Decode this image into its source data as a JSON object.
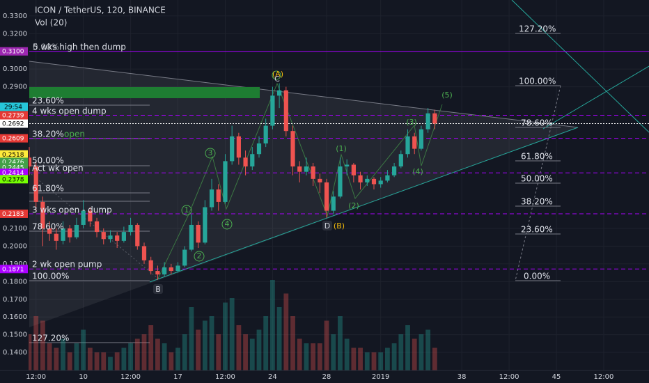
{
  "chart_data": {
    "type": "candlestick",
    "title": "ICON / TetherUS, 120, BINANCE",
    "subtitle": "Vol (20)",
    "xlim": [
      6,
      51.85
    ],
    "ylim": [
      0.1298,
      0.339
    ],
    "xticks": [
      {
        "value": 6.5,
        "label": "12:00"
      },
      10,
      {
        "value": 13.5,
        "label": "12:00"
      },
      17,
      {
        "value": 20.5,
        "label": "12:00"
      },
      24,
      28,
      {
        "value": 32,
        "label": "2019"
      },
      38,
      {
        "value": 41.5,
        "label": "12:00"
      },
      45,
      {
        "value": 48.5,
        "label": "12:00"
      }
    ],
    "yticks": [
      {
        "value": 0.33,
        "label": "0.3300"
      },
      {
        "value": 0.32,
        "label": "0.3200"
      },
      {
        "value": 0.3,
        "label": "0.3000"
      },
      {
        "value": 0.29,
        "label": "0.2900"
      },
      {
        "value": 0.21,
        "label": "0.2100"
      },
      {
        "value": 0.2,
        "label": "0.2000"
      },
      {
        "value": 0.19,
        "label": "0.1900"
      },
      {
        "value": 0.18,
        "label": "0.1800"
      },
      {
        "value": 0.17,
        "label": "0.1700"
      },
      {
        "value": 0.16,
        "label": "0.1600"
      },
      {
        "value": 0.15,
        "label": "0.1500"
      },
      {
        "value": 0.14,
        "label": "0.1400"
      }
    ],
    "grid": true,
    "up_color": "#26a69a",
    "down_color": "#ef5350",
    "timer": {
      "label": "29:54",
      "value": 0.2787,
      "color": "#26c6da"
    },
    "price_labels": [
      {
        "value": 0.31,
        "label": "0.3100",
        "color": "#9c27b0",
        "text_color": "#ffffff",
        "line_style": "solid"
      },
      {
        "value": 0.2739,
        "label": "0.2739",
        "color": "#e53935",
        "text_color": "#ffffff",
        "line_style": "dashed"
      },
      {
        "value": 0.2692,
        "label": "0.2692",
        "color": "#ffffff",
        "text_color": "#000000",
        "line_style": "dotted"
      },
      {
        "value": 0.2609,
        "label": "0.2609",
        "color": "#e53935",
        "text_color": "#ffffff",
        "line_style": "dashed"
      },
      {
        "value": 0.2518,
        "label": "0.2518",
        "color": "#ffeb3b",
        "text_color": "#000000"
      },
      {
        "value": 0.2476,
        "label": "0.2476",
        "color": "#43a047",
        "text_color": "#ffffff"
      },
      {
        "value": 0.2445,
        "label": "0.2445",
        "color": "#43a047",
        "text_color": "#ffffff"
      },
      {
        "value": 0.2414,
        "label": "0.2414",
        "color": "#aa00ff",
        "text_color": "#ffffff",
        "line_style": "dashed"
      },
      {
        "value": 0.2378,
        "label": "0.2378",
        "color": "#76ff03",
        "text_color": "#000000"
      },
      {
        "value": 0.2183,
        "label": "0.2183",
        "color": "#e53935",
        "text_color": "#ffffff",
        "line_style": "dashed"
      },
      {
        "value": 0.1871,
        "label": "0.1871",
        "color": "#aa00ff",
        "text_color": "#ffffff",
        "line_style": "dashed"
      }
    ],
    "candles": [
      {
        "x": 6.0,
        "open": 0.25,
        "high": 0.256,
        "low": 0.24,
        "close": 0.245
      },
      {
        "x": 6.5,
        "open": 0.245,
        "high": 0.248,
        "low": 0.22,
        "close": 0.225
      },
      {
        "x": 7.0,
        "open": 0.225,
        "high": 0.228,
        "low": 0.2,
        "close": 0.21
      },
      {
        "x": 7.5,
        "open": 0.21,
        "high": 0.214,
        "low": 0.203,
        "close": 0.207
      },
      {
        "x": 8.0,
        "open": 0.207,
        "high": 0.21,
        "low": 0.198,
        "close": 0.203
      },
      {
        "x": 8.5,
        "open": 0.203,
        "high": 0.214,
        "low": 0.201,
        "close": 0.21
      },
      {
        "x": 9.0,
        "open": 0.21,
        "high": 0.212,
        "low": 0.202,
        "close": 0.205
      },
      {
        "x": 9.5,
        "open": 0.205,
        "high": 0.216,
        "low": 0.204,
        "close": 0.212
      },
      {
        "x": 10.0,
        "open": 0.212,
        "high": 0.226,
        "low": 0.21,
        "close": 0.22
      },
      {
        "x": 10.5,
        "open": 0.22,
        "high": 0.222,
        "low": 0.211,
        "close": 0.214
      },
      {
        "x": 11.0,
        "open": 0.214,
        "high": 0.216,
        "low": 0.205,
        "close": 0.208
      },
      {
        "x": 11.5,
        "open": 0.208,
        "high": 0.21,
        "low": 0.201,
        "close": 0.204
      },
      {
        "x": 12.0,
        "open": 0.204,
        "high": 0.209,
        "low": 0.202,
        "close": 0.206
      },
      {
        "x": 12.5,
        "open": 0.206,
        "high": 0.208,
        "low": 0.199,
        "close": 0.203
      },
      {
        "x": 13.0,
        "open": 0.203,
        "high": 0.211,
        "low": 0.202,
        "close": 0.208
      },
      {
        "x": 13.5,
        "open": 0.208,
        "high": 0.216,
        "low": 0.206,
        "close": 0.212
      },
      {
        "x": 14.0,
        "open": 0.212,
        "high": 0.213,
        "low": 0.198,
        "close": 0.2
      },
      {
        "x": 14.5,
        "open": 0.2,
        "high": 0.202,
        "low": 0.19,
        "close": 0.192
      },
      {
        "x": 15.0,
        "open": 0.192,
        "high": 0.194,
        "low": 0.184,
        "close": 0.186
      },
      {
        "x": 15.5,
        "open": 0.186,
        "high": 0.189,
        "low": 0.181,
        "close": 0.184
      },
      {
        "x": 16.0,
        "open": 0.184,
        "high": 0.191,
        "low": 0.183,
        "close": 0.188
      },
      {
        "x": 16.5,
        "open": 0.188,
        "high": 0.19,
        "low": 0.184,
        "close": 0.186
      },
      {
        "x": 17.0,
        "open": 0.186,
        "high": 0.191,
        "low": 0.185,
        "close": 0.189
      },
      {
        "x": 17.5,
        "open": 0.189,
        "high": 0.2,
        "low": 0.188,
        "close": 0.198
      },
      {
        "x": 18.0,
        "open": 0.198,
        "high": 0.218,
        "low": 0.197,
        "close": 0.212
      },
      {
        "x": 18.5,
        "open": 0.212,
        "high": 0.214,
        "low": 0.199,
        "close": 0.202
      },
      {
        "x": 19.0,
        "open": 0.202,
        "high": 0.226,
        "low": 0.201,
        "close": 0.222
      },
      {
        "x": 19.5,
        "open": 0.222,
        "high": 0.238,
        "low": 0.22,
        "close": 0.232
      },
      {
        "x": 20.0,
        "open": 0.232,
        "high": 0.235,
        "low": 0.22,
        "close": 0.225
      },
      {
        "x": 20.5,
        "open": 0.225,
        "high": 0.252,
        "low": 0.224,
        "close": 0.248
      },
      {
        "x": 21.0,
        "open": 0.248,
        "high": 0.268,
        "low": 0.246,
        "close": 0.262
      },
      {
        "x": 21.5,
        "open": 0.262,
        "high": 0.264,
        "low": 0.246,
        "close": 0.25
      },
      {
        "x": 22.0,
        "open": 0.25,
        "high": 0.254,
        "low": 0.24,
        "close": 0.245
      },
      {
        "x": 22.5,
        "open": 0.245,
        "high": 0.256,
        "low": 0.243,
        "close": 0.252
      },
      {
        "x": 23.0,
        "open": 0.252,
        "high": 0.262,
        "low": 0.25,
        "close": 0.258
      },
      {
        "x": 23.5,
        "open": 0.258,
        "high": 0.272,
        "low": 0.256,
        "close": 0.268
      },
      {
        "x": 24.0,
        "open": 0.268,
        "high": 0.29,
        "low": 0.266,
        "close": 0.285
      },
      {
        "x": 24.5,
        "open": 0.285,
        "high": 0.292,
        "low": 0.278,
        "close": 0.288
      },
      {
        "x": 25.0,
        "open": 0.288,
        "high": 0.29,
        "low": 0.262,
        "close": 0.265
      },
      {
        "x": 25.5,
        "open": 0.265,
        "high": 0.268,
        "low": 0.24,
        "close": 0.245
      },
      {
        "x": 26.0,
        "open": 0.245,
        "high": 0.248,
        "low": 0.236,
        "close": 0.242
      },
      {
        "x": 26.5,
        "open": 0.242,
        "high": 0.25,
        "low": 0.24,
        "close": 0.245
      },
      {
        "x": 27.0,
        "open": 0.245,
        "high": 0.247,
        "low": 0.234,
        "close": 0.238
      },
      {
        "x": 27.5,
        "open": 0.238,
        "high": 0.241,
        "low": 0.23,
        "close": 0.236
      },
      {
        "x": 28.0,
        "open": 0.236,
        "high": 0.238,
        "low": 0.216,
        "close": 0.22
      },
      {
        "x": 28.5,
        "open": 0.22,
        "high": 0.231,
        "low": 0.218,
        "close": 0.228
      },
      {
        "x": 29.0,
        "open": 0.228,
        "high": 0.25,
        "low": 0.227,
        "close": 0.245
      },
      {
        "x": 29.5,
        "open": 0.245,
        "high": 0.249,
        "low": 0.24,
        "close": 0.246
      },
      {
        "x": 30.0,
        "open": 0.246,
        "high": 0.247,
        "low": 0.236,
        "close": 0.24
      },
      {
        "x": 30.5,
        "open": 0.24,
        "high": 0.242,
        "low": 0.232,
        "close": 0.236
      },
      {
        "x": 31.0,
        "open": 0.236,
        "high": 0.24,
        "low": 0.234,
        "close": 0.238
      },
      {
        "x": 31.5,
        "open": 0.238,
        "high": 0.239,
        "low": 0.232,
        "close": 0.235
      },
      {
        "x": 32.0,
        "open": 0.235,
        "high": 0.239,
        "low": 0.233,
        "close": 0.237
      },
      {
        "x": 32.5,
        "open": 0.237,
        "high": 0.243,
        "low": 0.236,
        "close": 0.24
      },
      {
        "x": 33.0,
        "open": 0.24,
        "high": 0.247,
        "low": 0.239,
        "close": 0.245
      },
      {
        "x": 33.5,
        "open": 0.245,
        "high": 0.254,
        "low": 0.244,
        "close": 0.252
      },
      {
        "x": 34.0,
        "open": 0.252,
        "high": 0.266,
        "low": 0.25,
        "close": 0.262
      },
      {
        "x": 34.5,
        "open": 0.262,
        "high": 0.264,
        "low": 0.252,
        "close": 0.255
      },
      {
        "x": 35.0,
        "open": 0.255,
        "high": 0.268,
        "low": 0.254,
        "close": 0.266
      },
      {
        "x": 35.5,
        "open": 0.266,
        "high": 0.278,
        "low": 0.264,
        "close": 0.275
      },
      {
        "x": 36.0,
        "open": 0.275,
        "high": 0.277,
        "low": 0.266,
        "close": 0.2692
      }
    ],
    "volume": [
      40,
      60,
      55,
      30,
      25,
      35,
      20,
      30,
      45,
      25,
      20,
      20,
      15,
      20,
      25,
      30,
      35,
      40,
      50,
      35,
      30,
      20,
      25,
      40,
      70,
      45,
      55,
      60,
      40,
      75,
      80,
      50,
      40,
      35,
      45,
      60,
      100,
      70,
      85,
      60,
      35,
      30,
      30,
      30,
      55,
      40,
      60,
      35,
      25,
      25,
      20,
      20,
      20,
      25,
      30,
      40,
      50,
      35,
      40,
      45,
      25
    ],
    "annotations": {
      "left": [
        "5 wks high then dump",
        "0.00%",
        "23.60%",
        "4 wks open dump",
        "38.20%",
        "open",
        "50.00%",
        "Act wk open",
        "61.80%",
        "3 wks open - dump",
        "78.60%",
        "2 wk open pump",
        "100.00%",
        "127.20%"
      ],
      "right": [
        "127.20%",
        "100.00%",
        "78.60%",
        "61.80%",
        "50.00%",
        "38.20%",
        "23.60%",
        "0.00%"
      ],
      "waves": [
        "(A)",
        "C",
        "D",
        "(B)",
        "B",
        "1",
        "2",
        "3",
        "4",
        "(1)",
        "(2)",
        "(3)",
        "(4)",
        "(5)"
      ]
    }
  }
}
